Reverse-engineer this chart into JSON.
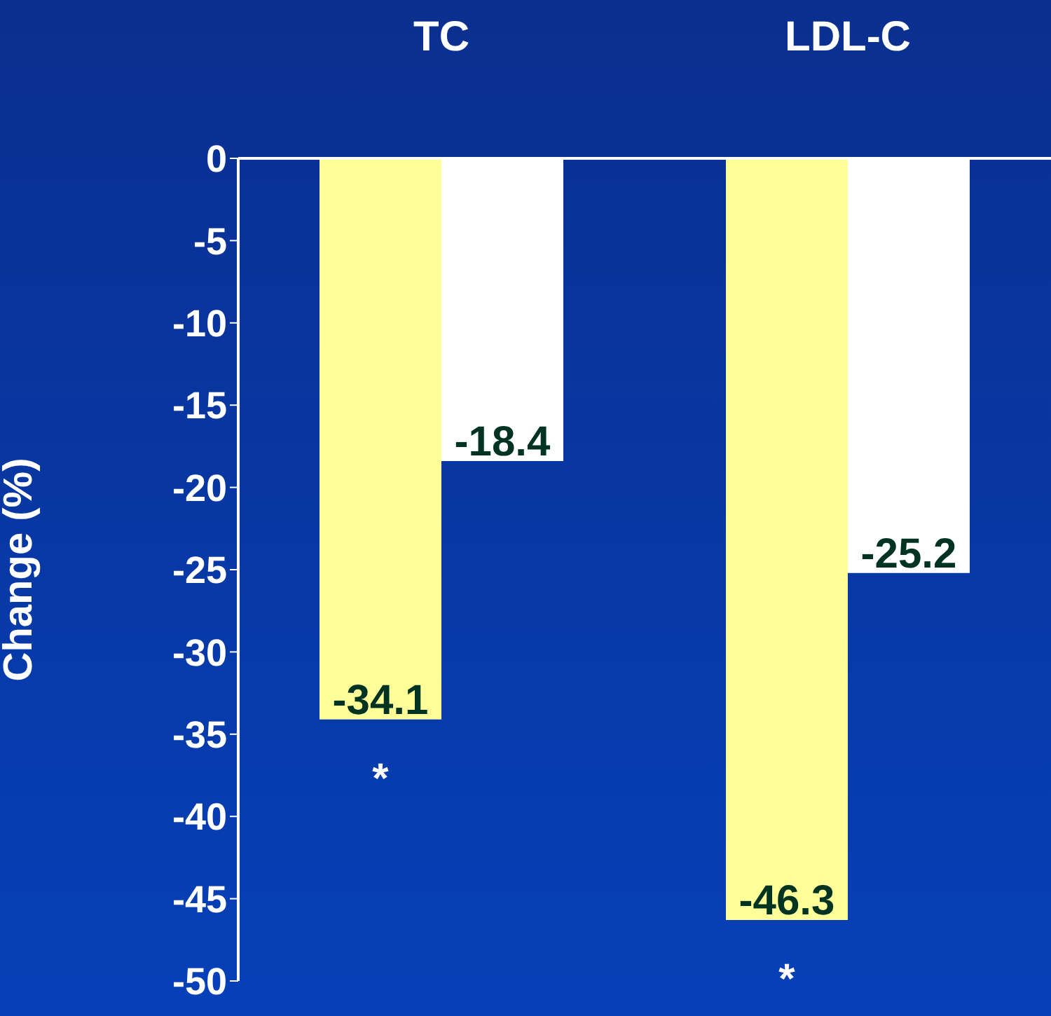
{
  "chart_data": {
    "type": "bar",
    "ylabel": "Change (%)",
    "categories": [
      "TC",
      "LDL-C"
    ],
    "series": [
      {
        "color": "#ffff99",
        "values": [
          -34.1,
          -46.3
        ]
      },
      {
        "color": "#ffffff",
        "values": [
          -18.4,
          -25.2
        ]
      }
    ],
    "ylim": [
      -50,
      0
    ],
    "yticks": [
      0,
      -5,
      -10,
      -15,
      -20,
      -25,
      -30,
      -35,
      -40,
      -45,
      -50
    ],
    "data_labels": true,
    "grid": false,
    "legend": false,
    "annotations": [
      "*",
      "*"
    ]
  }
}
